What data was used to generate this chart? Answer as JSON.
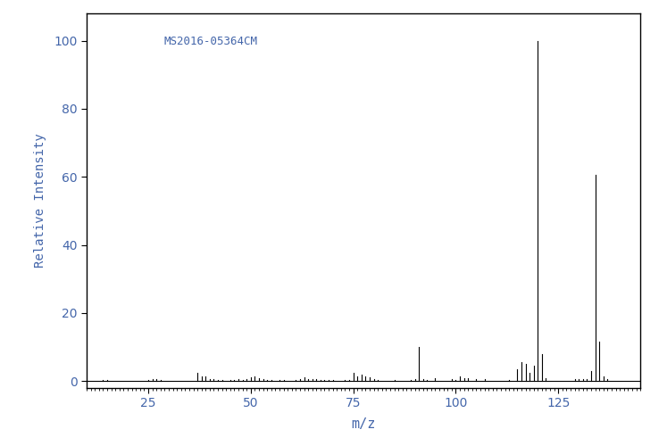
{
  "title": "MS2016-05364CM",
  "xlabel": "m/z",
  "ylabel": "Relative Intensity",
  "xlim": [
    10,
    145
  ],
  "ylim": [
    -2,
    108
  ],
  "yticks": [
    0,
    20,
    40,
    60,
    80,
    100
  ],
  "xticks": [
    25,
    50,
    75,
    100,
    125
  ],
  "background_color": "#ffffff",
  "label_color": "#4466aa",
  "title_color": "#4466aa",
  "spine_color": "#000000",
  "peaks": [
    [
      12,
      0.2
    ],
    [
      13,
      0.2
    ],
    [
      14,
      0.3
    ],
    [
      15,
      0.4
    ],
    [
      24,
      0.2
    ],
    [
      25,
      0.3
    ],
    [
      26,
      0.5
    ],
    [
      27,
      0.5
    ],
    [
      28,
      0.3
    ],
    [
      29,
      0.2
    ],
    [
      37,
      2.5
    ],
    [
      38,
      1.5
    ],
    [
      39,
      1.5
    ],
    [
      40,
      0.5
    ],
    [
      41,
      0.5
    ],
    [
      42,
      0.4
    ],
    [
      43,
      0.3
    ],
    [
      45,
      0.3
    ],
    [
      46,
      0.3
    ],
    [
      47,
      0.5
    ],
    [
      48,
      0.3
    ],
    [
      49,
      0.7
    ],
    [
      50,
      1.2
    ],
    [
      51,
      1.5
    ],
    [
      52,
      0.8
    ],
    [
      53,
      0.6
    ],
    [
      54,
      0.4
    ],
    [
      55,
      0.4
    ],
    [
      57,
      0.3
    ],
    [
      58,
      0.4
    ],
    [
      61,
      0.4
    ],
    [
      62,
      0.7
    ],
    [
      63,
      1.2
    ],
    [
      64,
      0.6
    ],
    [
      65,
      0.6
    ],
    [
      66,
      0.5
    ],
    [
      67,
      0.4
    ],
    [
      68,
      0.4
    ],
    [
      69,
      0.3
    ],
    [
      70,
      0.4
    ],
    [
      73,
      0.4
    ],
    [
      74,
      0.4
    ],
    [
      75,
      2.5
    ],
    [
      76,
      1.5
    ],
    [
      77,
      2.0
    ],
    [
      78,
      1.5
    ],
    [
      79,
      1.2
    ],
    [
      80,
      0.5
    ],
    [
      81,
      0.3
    ],
    [
      85,
      0.3
    ],
    [
      89,
      0.4
    ],
    [
      90,
      0.5
    ],
    [
      91,
      10.0
    ],
    [
      92,
      0.5
    ],
    [
      93,
      0.4
    ],
    [
      95,
      0.8
    ],
    [
      99,
      0.5
    ],
    [
      100,
      0.4
    ],
    [
      101,
      1.5
    ],
    [
      102,
      1.0
    ],
    [
      103,
      1.0
    ],
    [
      105,
      0.5
    ],
    [
      107,
      0.5
    ],
    [
      113,
      0.4
    ],
    [
      115,
      3.5
    ],
    [
      116,
      5.5
    ],
    [
      117,
      5.0
    ],
    [
      118,
      2.5
    ],
    [
      119,
      4.5
    ],
    [
      120,
      100.0
    ],
    [
      121,
      8.0
    ],
    [
      122,
      1.0
    ],
    [
      129,
      0.7
    ],
    [
      130,
      0.5
    ],
    [
      131,
      0.5
    ],
    [
      132,
      0.5
    ],
    [
      133,
      3.0
    ],
    [
      134,
      60.5
    ],
    [
      135,
      11.5
    ],
    [
      136,
      1.5
    ],
    [
      137,
      0.5
    ]
  ]
}
